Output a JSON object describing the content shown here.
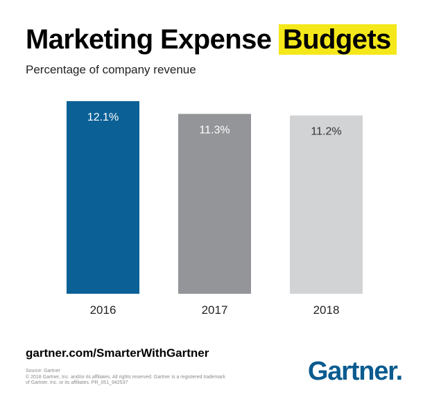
{
  "title": {
    "main": "Marketing Expense",
    "highlight": "Budgets"
  },
  "subtitle": "Percentage of company revenue",
  "colors": {
    "bar_2016": "#0b6196",
    "bar_2017": "#939598",
    "bar_2018": "#d1d3d4",
    "highlight": "#f4e81a",
    "logo": "#0a5b8f"
  },
  "chart_data": {
    "type": "bar",
    "title": "Marketing Expense Budgets",
    "subtitle": "Percentage of company revenue",
    "categories": [
      "2016",
      "2017",
      "2018"
    ],
    "values": [
      12.1,
      11.3,
      11.2
    ],
    "value_labels": [
      "12.1%",
      "11.3%",
      "11.2%"
    ],
    "xlabel": "",
    "ylabel": "",
    "ylim": [
      0,
      12.1
    ],
    "grid": false,
    "legend": "none"
  },
  "footer": {
    "url": "gartner.com/SmarterWithGartner",
    "source": "Source: Gartner",
    "copyright_line1": "© 2018 Gartner, Inc. and/or its affiliates. All rights reserved. Gartner is a registered trademark",
    "copyright_line2": "of Gartner, Inc. or its affiliates. PR_051_942537",
    "logo_text": "Gartner."
  }
}
